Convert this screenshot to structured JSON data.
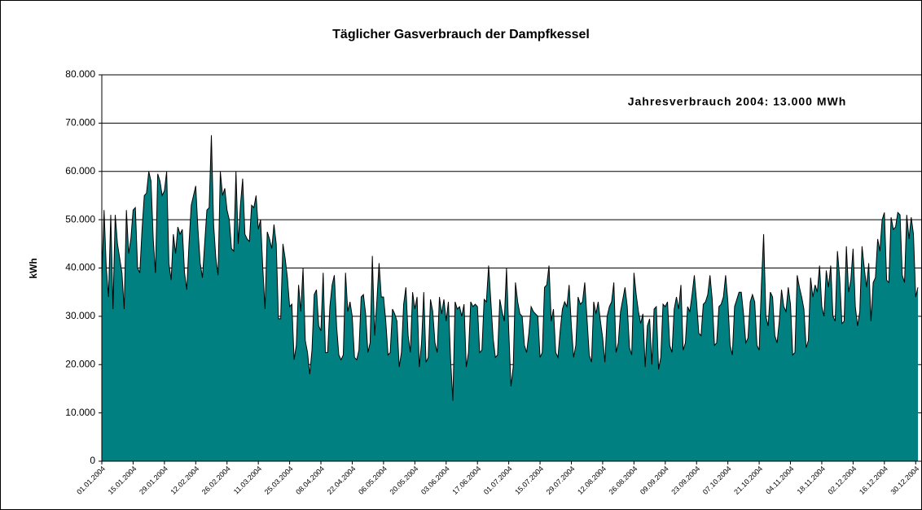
{
  "chart_data": {
    "type": "area",
    "title": "Täglicher Gasverbrauch der Dampfkessel",
    "ylabel": "kWh",
    "annotation": "Jahresverbrauch 2004: 13.000 MWh",
    "color": "#008080",
    "grid": true,
    "ylim": [
      0,
      80000
    ],
    "yticks": [
      0,
      {
        "value": 10000,
        "label": "10.000"
      },
      {
        "value": 20000,
        "label": "20.000"
      },
      {
        "value": 30000,
        "label": "30.000"
      },
      {
        "value": 40000,
        "label": "40.000"
      },
      {
        "value": 50000,
        "label": "50.000"
      },
      {
        "value": 60000,
        "label": "60.000"
      },
      {
        "value": 70000,
        "label": "70.000"
      },
      {
        "value": 80000,
        "label": "80.000"
      }
    ],
    "categories": [
      "01.01.2004",
      null,
      null,
      null,
      null,
      null,
      null,
      null,
      null,
      null,
      null,
      null,
      null,
      null,
      "15.01.2004",
      null,
      null,
      null,
      null,
      null,
      null,
      null,
      null,
      null,
      null,
      null,
      null,
      null,
      "29.01.2004",
      null,
      null,
      null,
      null,
      null,
      null,
      null,
      null,
      null,
      null,
      null,
      null,
      null,
      "12.02.2004",
      null,
      null,
      null,
      null,
      null,
      null,
      null,
      null,
      null,
      null,
      null,
      null,
      null,
      "26.02.2004",
      null,
      null,
      null,
      null,
      null,
      null,
      null,
      null,
      null,
      null,
      null,
      null,
      null,
      "11.03.2004",
      null,
      null,
      null,
      null,
      null,
      null,
      null,
      null,
      null,
      null,
      null,
      null,
      null,
      "25.03.2004",
      null,
      null,
      null,
      null,
      null,
      null,
      null,
      null,
      null,
      null,
      null,
      null,
      null,
      "08.04.2004",
      null,
      null,
      null,
      null,
      null,
      null,
      null,
      null,
      null,
      null,
      null,
      null,
      null,
      "22.04.2004",
      null,
      null,
      null,
      null,
      null,
      null,
      null,
      null,
      null,
      null,
      null,
      null,
      null,
      "06.05.2004",
      null,
      null,
      null,
      null,
      null,
      null,
      null,
      null,
      null,
      null,
      null,
      null,
      null,
      "20.05.2004",
      null,
      null,
      null,
      null,
      null,
      null,
      null,
      null,
      null,
      null,
      null,
      null,
      null,
      "03.06.2004",
      null,
      null,
      null,
      null,
      null,
      null,
      null,
      null,
      null,
      null,
      null,
      null,
      null,
      "17.06.2004",
      null,
      null,
      null,
      null,
      null,
      null,
      null,
      null,
      null,
      null,
      null,
      null,
      null,
      "01.07.2004",
      null,
      null,
      null,
      null,
      null,
      null,
      null,
      null,
      null,
      null,
      null,
      null,
      null,
      "15.07.2004",
      null,
      null,
      null,
      null,
      null,
      null,
      null,
      null,
      null,
      null,
      null,
      null,
      null,
      "29.07.2004",
      null,
      null,
      null,
      null,
      null,
      null,
      null,
      null,
      null,
      null,
      null,
      null,
      null,
      "12.08.2004",
      null,
      null,
      null,
      null,
      null,
      null,
      null,
      null,
      null,
      null,
      null,
      null,
      null,
      "26.08.2004",
      null,
      null,
      null,
      null,
      null,
      null,
      null,
      null,
      null,
      null,
      null,
      null,
      null,
      "09.09.2004",
      null,
      null,
      null,
      null,
      null,
      null,
      null,
      null,
      null,
      null,
      null,
      null,
      null,
      "23.09.2004",
      null,
      null,
      null,
      null,
      null,
      null,
      null,
      null,
      null,
      null,
      null,
      null,
      null,
      "07.10.2004",
      null,
      null,
      null,
      null,
      null,
      null,
      null,
      null,
      null,
      null,
      null,
      null,
      null,
      "21.10.2004",
      null,
      null,
      null,
      null,
      null,
      null,
      null,
      null,
      null,
      null,
      null,
      null,
      null,
      "04.11.2004",
      null,
      null,
      null,
      null,
      null,
      null,
      null,
      null,
      null,
      null,
      null,
      null,
      null,
      "18.11.2004",
      null,
      null,
      null,
      null,
      null,
      null,
      null,
      null,
      null,
      null,
      null,
      null,
      null,
      "02.12.2004",
      null,
      null,
      null,
      null,
      null,
      null,
      null,
      null,
      null,
      null,
      null,
      null,
      null,
      "16.12.2004",
      null,
      null,
      null,
      null,
      null,
      null,
      null,
      null,
      null,
      null,
      null,
      null,
      null,
      "30.12.2004",
      null
    ],
    "values": [
      38000,
      52000,
      40000,
      34000,
      51000,
      31500,
      51000,
      45000,
      42000,
      39000,
      31500,
      52000,
      43000,
      46000,
      52000,
      52500,
      40000,
      39000,
      48000,
      55000,
      55500,
      60000,
      58000,
      46000,
      39000,
      59500,
      58000,
      55000,
      56000,
      60000,
      41000,
      37500,
      47000,
      43000,
      48500,
      47000,
      48000,
      39000,
      35500,
      45000,
      53000,
      55000,
      57000,
      48000,
      41000,
      38000,
      45000,
      52000,
      52500,
      67500,
      49000,
      42000,
      38500,
      60000,
      55000,
      56500,
      52000,
      50000,
      44000,
      43500,
      60000,
      45000,
      53000,
      58500,
      47000,
      46000,
      45500,
      53000,
      52500,
      55000,
      48000,
      50000,
      40000,
      31500,
      47500,
      46000,
      44000,
      49000,
      45000,
      29500,
      29500,
      45000,
      42000,
      38000,
      32000,
      32500,
      21000,
      24000,
      36500,
      31000,
      40000,
      25000,
      22500,
      18000,
      23000,
      34500,
      35500,
      28000,
      27000,
      39000,
      22500,
      22500,
      32000,
      36500,
      38500,
      28000,
      22000,
      21000,
      22000,
      39000,
      31000,
      33000,
      30000,
      21500,
      21000,
      23000,
      34000,
      34500,
      30500,
      22500,
      24500,
      42500,
      26000,
      33000,
      41000,
      34000,
      34000,
      29000,
      22000,
      22500,
      31500,
      30500,
      29000,
      19500,
      22500,
      32500,
      36000,
      26000,
      22500,
      35000,
      31500,
      34000,
      19500,
      24500,
      35000,
      20500,
      21500,
      33500,
      31000,
      24500,
      22500,
      34000,
      30500,
      33500,
      29000,
      33000,
      21000,
      12500,
      33000,
      31500,
      32000,
      30000,
      32500,
      19500,
      22500,
      33000,
      32000,
      32500,
      32000,
      22500,
      23000,
      33500,
      33000,
      40500,
      33000,
      25500,
      21500,
      22000,
      33500,
      31000,
      29000,
      40000,
      27000,
      15500,
      19500,
      37000,
      33000,
      30500,
      30000,
      24000,
      22500,
      26500,
      32000,
      31000,
      30500,
      30000,
      21500,
      22500,
      36000,
      36500,
      40500,
      29000,
      31500,
      22500,
      21500,
      27000,
      31500,
      33000,
      32000,
      36500,
      28000,
      21500,
      24000,
      34000,
      32500,
      33000,
      37000,
      29500,
      22000,
      20500,
      33000,
      30500,
      33000,
      29000,
      25500,
      20500,
      30000,
      32000,
      33000,
      37000,
      22500,
      24500,
      31000,
      33500,
      36000,
      32000,
      23500,
      22000,
      39000,
      34500,
      31000,
      28500,
      30500,
      19500,
      28000,
      29500,
      20000,
      31500,
      32000,
      19000,
      21500,
      32500,
      32000,
      33000,
      24000,
      22500,
      31500,
      34000,
      31500,
      36500,
      23000,
      24500,
      32000,
      31000,
      34500,
      38500,
      33000,
      26500,
      26000,
      32500,
      33000,
      34500,
      38500,
      33500,
      24000,
      24500,
      32000,
      32500,
      34000,
      38500,
      33000,
      24000,
      22000,
      32000,
      33500,
      35000,
      35000,
      30500,
      24500,
      25500,
      33000,
      34500,
      33000,
      24000,
      23000,
      36500,
      47000,
      30000,
      28000,
      35000,
      34000,
      26000,
      24500,
      29000,
      35500,
      32000,
      31000,
      36000,
      32500,
      22000,
      22500,
      38500,
      36000,
      34000,
      31500,
      23500,
      25000,
      38000,
      34000,
      36500,
      35000,
      40500,
      32000,
      30000,
      39500,
      36000,
      40500,
      30000,
      29000,
      43500,
      38000,
      28500,
      29000,
      44500,
      35000,
      37500,
      44000,
      32000,
      28000,
      31000,
      44500,
      40000,
      36000,
      41000,
      29000,
      37000,
      38000,
      46000,
      43500,
      50000,
      51500,
      37500,
      37000,
      50500,
      48000,
      48500,
      51500,
      51000,
      38500,
      37000,
      51000,
      46000,
      50500,
      47000,
      34000,
      36000
    ]
  }
}
